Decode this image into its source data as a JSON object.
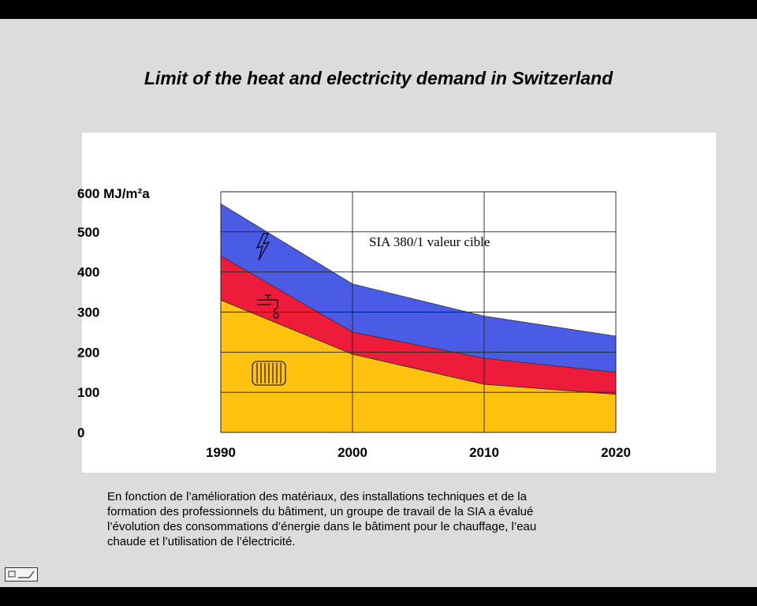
{
  "slide": {
    "title": "Limit of the heat and electricity demand in Switzerland",
    "caption_lines": [
      "En fonction de l’amélioration des matériaux, des installations techniques et de la",
      "formation des professionnels du bâtiment, un groupe de travail de la SIA a évalué",
      "l’évolution des consommations d’énergie dans le bâtiment pour le chauffage, l’eau",
      "chaude et l’utilisation de l’électricité."
    ]
  },
  "icons": {
    "electricity": "lightning-icon",
    "hot_water": "faucet-icon",
    "heating": "radiator-icon",
    "navigation": "nav-arrow-icon"
  },
  "chart_data": {
    "type": "area",
    "stacked": true,
    "x": [
      1990,
      2000,
      2010,
      2020
    ],
    "xlim": [
      1990,
      2020
    ],
    "ylim": [
      0,
      600
    ],
    "y_ticks": [
      "0",
      "100",
      "200",
      "300",
      "400",
      "500"
    ],
    "y_top_label": "600 MJ/m²a",
    "x_ticks": [
      "1990",
      "2000",
      "2010",
      "2020"
    ],
    "annotation": "SIA 380/1 valeur cible",
    "grid": true,
    "series": [
      {
        "key": "heating",
        "values": [
          330,
          195,
          120,
          95
        ],
        "color": "#ffc20e"
      },
      {
        "key": "hot_water",
        "values": [
          110,
          55,
          65,
          55
        ],
        "color": "#ee1c3a"
      },
      {
        "key": "electricity",
        "values": [
          130,
          120,
          105,
          90
        ],
        "color": "#4a5ce6"
      }
    ]
  }
}
